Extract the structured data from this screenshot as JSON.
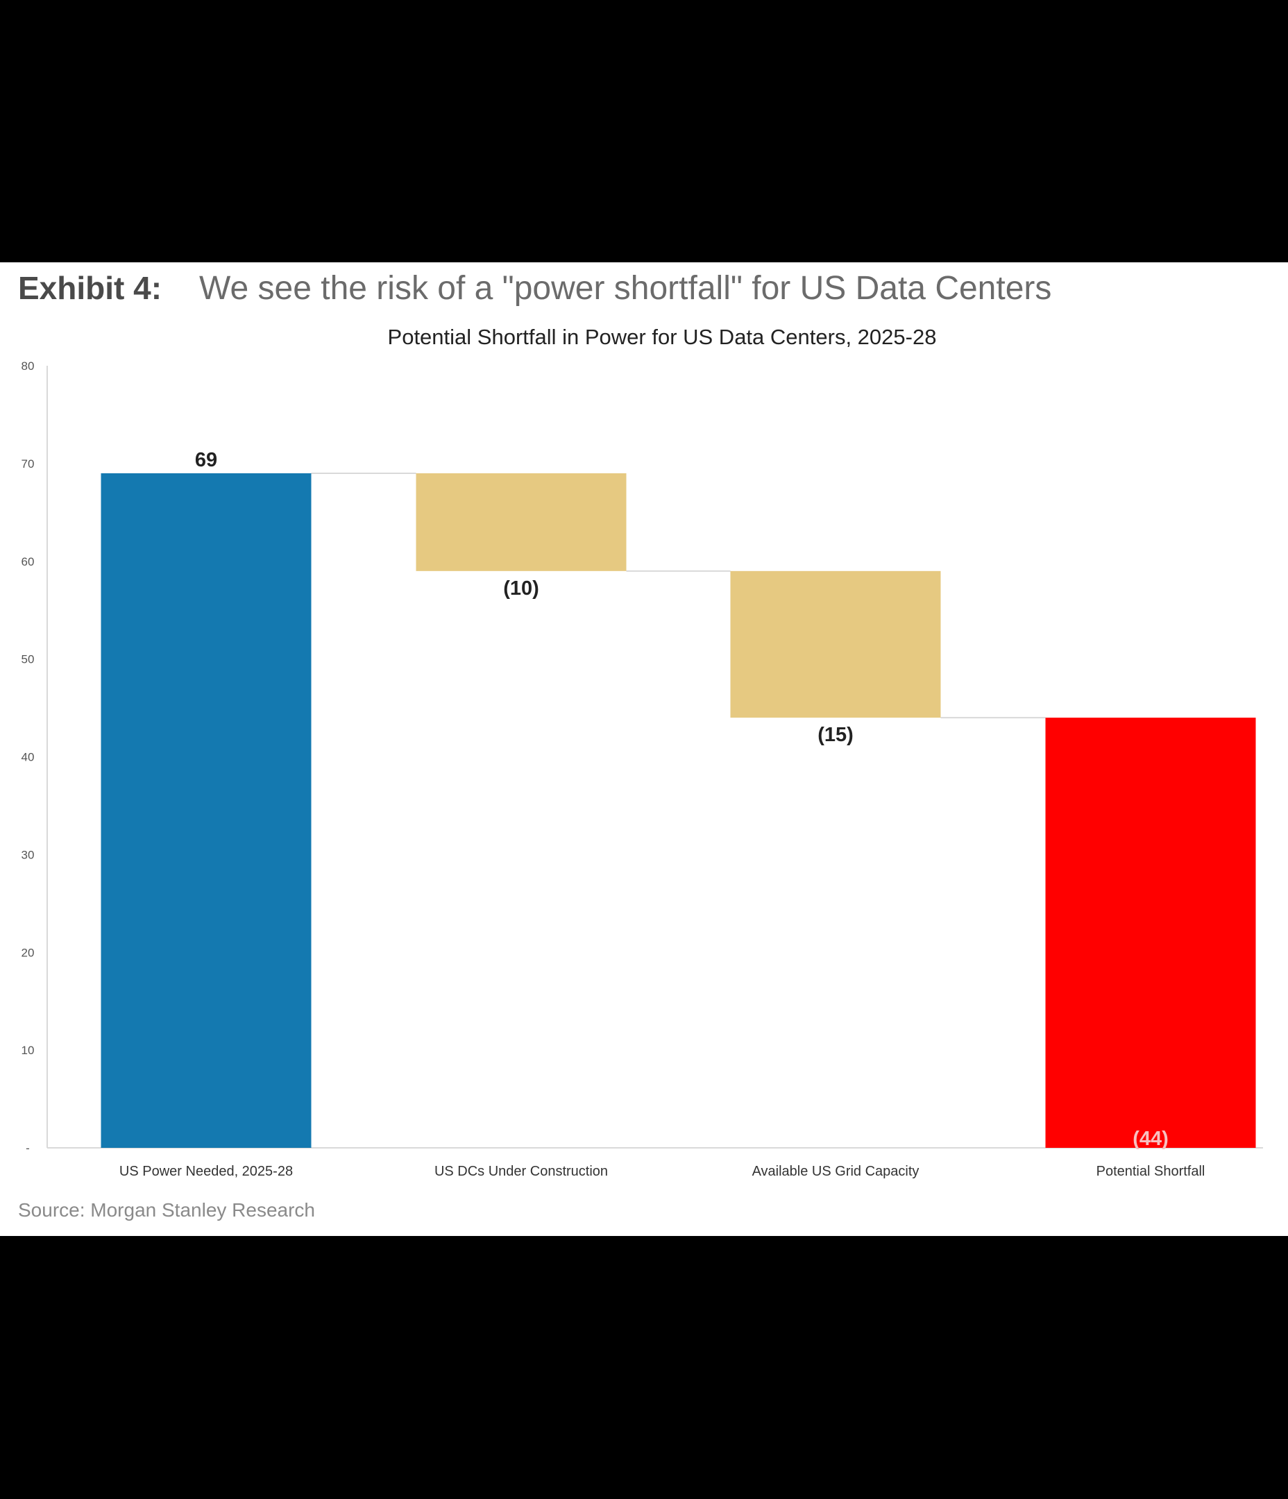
{
  "exhibit": {
    "label": "Exhibit 4:",
    "title": "We see the risk of a \"power shortfall\" for US Data Centers"
  },
  "source": "Source: Morgan Stanley Research",
  "colors": {
    "total": "#1479b0",
    "decrease": "#e6c981",
    "shortfall": "#ff0000",
    "connector": "#d9d9d9",
    "axis": "#d9d9d9",
    "text": "#222222",
    "page_background": "#000000",
    "panel_background": "#ffffff"
  },
  "chart_data": {
    "type": "bar",
    "subtype": "waterfall",
    "title": "Potential Shortfall in Power for US Data Centers, 2025-28",
    "xlabel": "",
    "ylabel": "",
    "ylim": [
      0,
      80
    ],
    "yticks": [
      0,
      10,
      20,
      30,
      40,
      50,
      60,
      70,
      80
    ],
    "ytick_labels": [
      "-",
      "10",
      "20",
      "30",
      "40",
      "50",
      "60",
      "70",
      "80"
    ],
    "grid": false,
    "legend": "none",
    "categories": [
      "US Power Needed, 2025-28",
      "US DCs Under Construction",
      "Available US Grid Capacity",
      "Potential Shortfall"
    ],
    "bars": [
      {
        "category": "US Power Needed, 2025-28",
        "kind": "total",
        "start": 0,
        "end": 69,
        "label": "69"
      },
      {
        "category": "US DCs Under Construction",
        "kind": "decrease",
        "start": 69,
        "end": 59,
        "label": "(10)"
      },
      {
        "category": "Available US Grid Capacity",
        "kind": "decrease",
        "start": 59,
        "end": 44,
        "label": "(15)"
      },
      {
        "category": "Potential Shortfall",
        "kind": "shortfall",
        "start": 0,
        "end": 44,
        "label": "(44)"
      }
    ]
  }
}
